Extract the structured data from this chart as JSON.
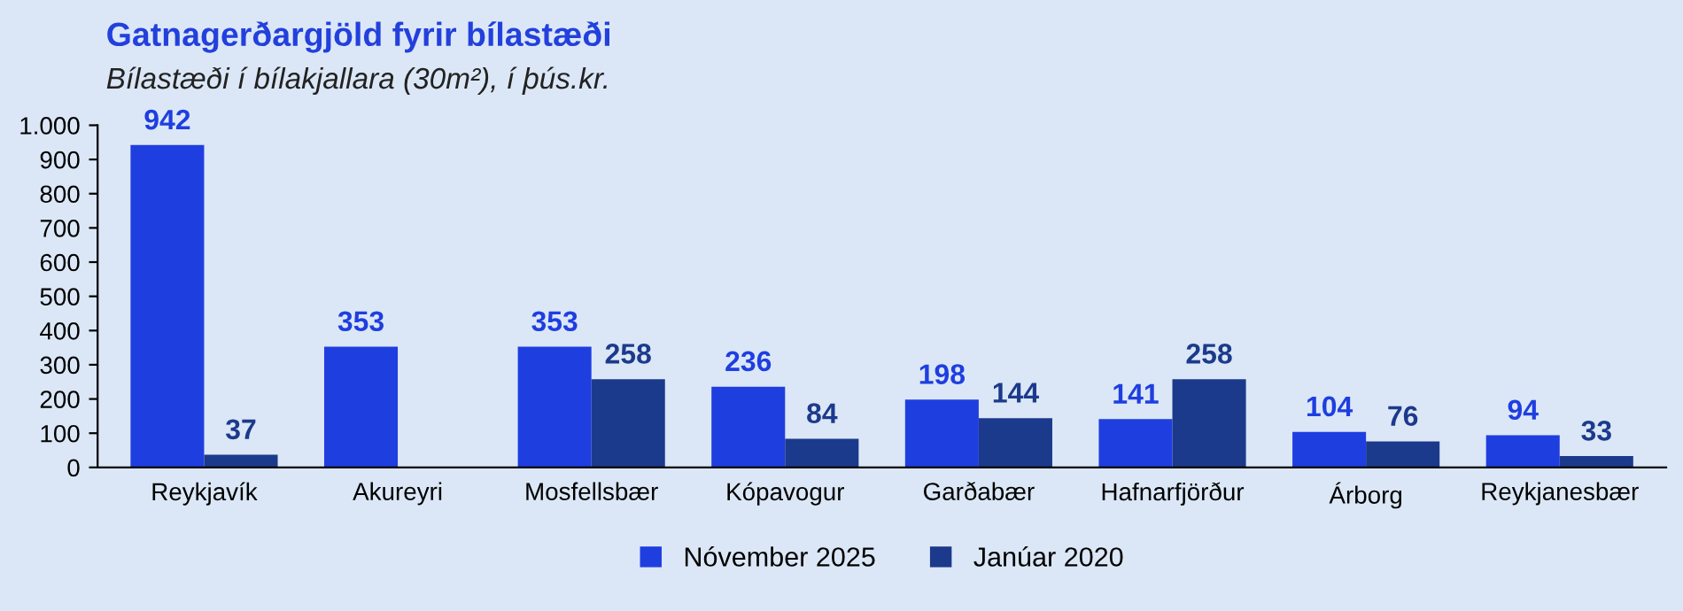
{
  "chart_data": {
    "type": "bar",
    "title": "Gatnagerðargjöld fyrir bílastæði",
    "subtitle": "Bílastæði í bílakjallara (30m²), í þús.kr.",
    "categories": [
      "Reykjavík",
      "Akureyri",
      "Mosfellsbær",
      "Kópavogur",
      "Garðabær",
      "Hafnarfjörður",
      "Árborg",
      "Reykjanesbær"
    ],
    "series": [
      {
        "name": "Nóvember 2025",
        "color": "#1f3ee0",
        "values": [
          942,
          353,
          353,
          236,
          198,
          141,
          104,
          94
        ]
      },
      {
        "name": "Janúar 2020",
        "color": "#1c3a8c",
        "values": [
          37,
          null,
          258,
          84,
          144,
          258,
          76,
          33
        ]
      }
    ],
    "ylim": [
      0,
      1000
    ],
    "yticks": [
      0,
      100,
      200,
      300,
      400,
      500,
      600,
      700,
      800,
      900,
      {
        "value": 1000,
        "label": "1.000"
      }
    ],
    "data_labels": true,
    "grid": false,
    "legend": "bottom"
  }
}
